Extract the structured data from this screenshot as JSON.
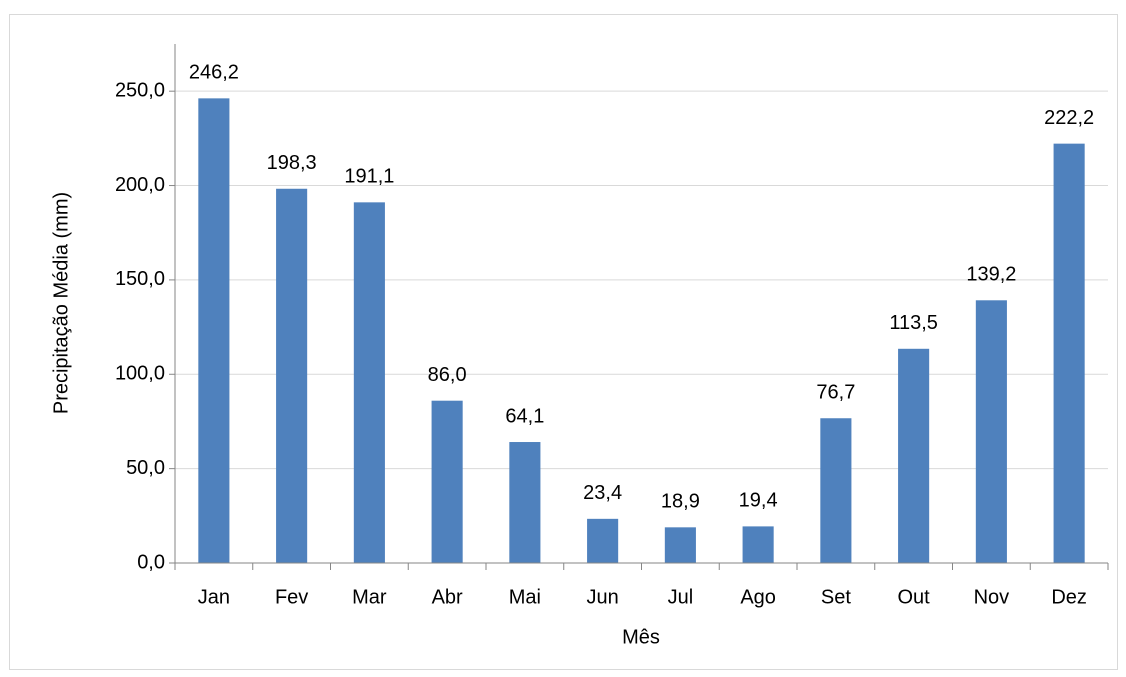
{
  "chart_data": {
    "type": "bar",
    "x_label": "Mês",
    "y_label": "Precipitação Média (mm)",
    "categories": [
      "Jan",
      "Fev",
      "Mar",
      "Abr",
      "Mai",
      "Jun",
      "Jul",
      "Ago",
      "Set",
      "Out",
      "Nov",
      "Dez"
    ],
    "values": [
      246.2,
      198.3,
      191.1,
      86.0,
      64.1,
      23.4,
      18.9,
      19.4,
      76.7,
      113.5,
      139.2,
      222.2
    ],
    "value_labels": [
      "246,2",
      "198,3",
      "191,1",
      "86,0",
      "64,1",
      "23,4",
      "18,9",
      "19,4",
      "76,7",
      "113,5",
      "139,2",
      "222,2"
    ],
    "color": "#4f81bd",
    "ylim": [
      0,
      275
    ],
    "yticks": [
      {
        "value": 0,
        "label": "0,0"
      },
      {
        "value": 50,
        "label": "50,0"
      },
      {
        "value": 100,
        "label": "100,0"
      },
      {
        "value": 150,
        "label": "150,0"
      },
      {
        "value": 200,
        "label": "200,0"
      },
      {
        "value": 250,
        "label": "250,0"
      }
    ],
    "grid": true
  }
}
